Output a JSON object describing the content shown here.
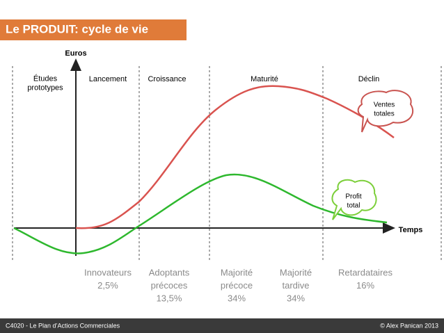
{
  "header": {
    "title": "Le PRODUIT: cycle de vie"
  },
  "axes": {
    "y_label": "Euros",
    "x_label": "Temps"
  },
  "phases": [
    {
      "lines": [
        "Études",
        "prototypes"
      ]
    },
    {
      "lines": [
        "Lancement"
      ]
    },
    {
      "lines": [
        "Croissance"
      ]
    },
    {
      "lines": [
        "Maturité"
      ]
    },
    {
      "lines": [
        "Déclin"
      ]
    }
  ],
  "callouts": {
    "sales": [
      "Ventes",
      "totales"
    ],
    "profit": [
      "Profit",
      "total"
    ]
  },
  "segments": [
    {
      "lines": [
        "Innovateurs",
        "2,5%"
      ]
    },
    {
      "lines": [
        "Adoptants",
        "précoces",
        "13,5%"
      ]
    },
    {
      "lines": [
        "Majorité",
        "précoce",
        "34%"
      ]
    },
    {
      "lines": [
        "Majorité",
        "tardive",
        "34%"
      ]
    },
    {
      "lines": [
        "Retardataires",
        "16%"
      ]
    }
  ],
  "footer": {
    "left": "C4020 - Le Plan d’Actions Commerciales",
    "right": "© Alex Panican 2013"
  }
}
